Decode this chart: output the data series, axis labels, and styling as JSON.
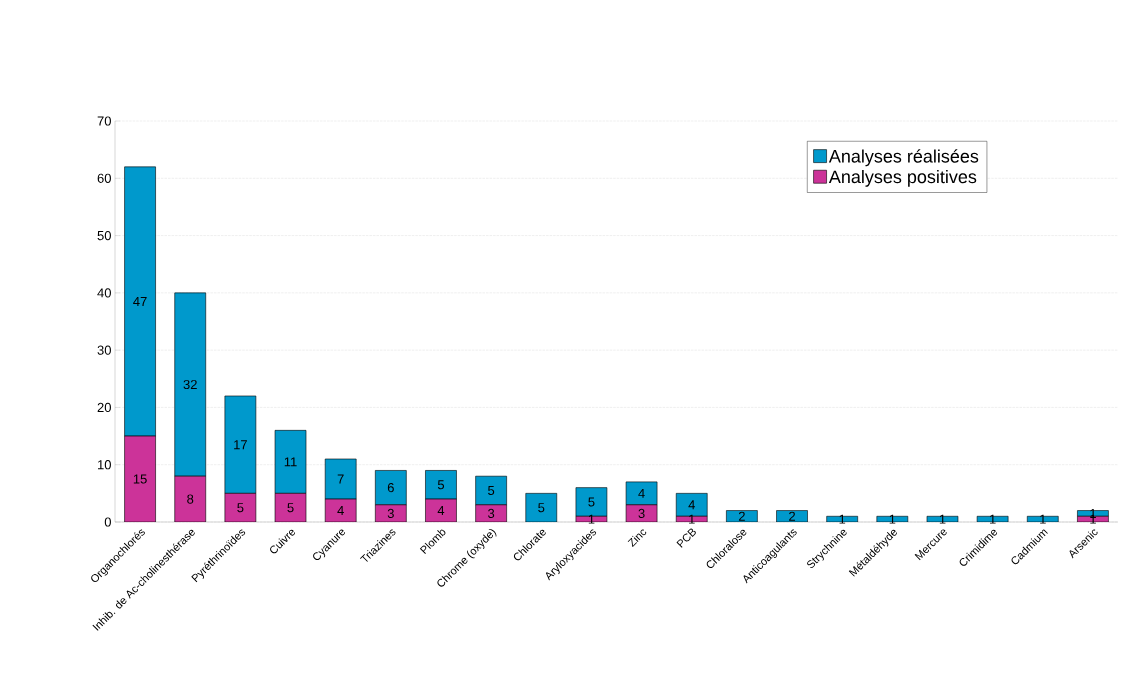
{
  "chart_data": {
    "type": "bar",
    "stacked": true,
    "categories": [
      "Organochlorés",
      "Inhib. de Ac-cholinesthérase",
      "Pyréthrinoïdes",
      "Cuivre",
      "Cyanure",
      "Triazines",
      "Plomb",
      "Chrome (oxyde)",
      "Chlorate",
      "Aryloxyacides",
      "Zinc",
      "PCB",
      "Chloralose",
      "Anticoagulants",
      "Strychnine",
      "Métaldéhyde",
      "Mercure",
      "Crimidime",
      "Cadmium",
      "Arsenic"
    ],
    "series": [
      {
        "name": "Analyses positives",
        "color": "#cc3399",
        "values": [
          15,
          8,
          5,
          5,
          4,
          3,
          4,
          3,
          0,
          1,
          3,
          1,
          0,
          0,
          0,
          0,
          0,
          0,
          0,
          1
        ],
        "value_labels": [
          "15",
          "8",
          "5",
          "5",
          "4",
          "3",
          "4",
          "3",
          null,
          "1",
          "3",
          "1",
          null,
          null,
          null,
          null,
          null,
          null,
          null,
          "1"
        ]
      },
      {
        "name": "Analyses réalisées",
        "color": "#0099cc",
        "values": [
          47,
          32,
          17,
          11,
          7,
          6,
          5,
          5,
          5,
          5,
          4,
          4,
          2,
          2,
          1,
          1,
          1,
          1,
          1,
          1
        ],
        "value_labels": [
          "47",
          "32",
          "17",
          "11",
          "7",
          "6",
          "5",
          "5",
          "5",
          "5",
          "4",
          "4",
          "2",
          "2",
          "1",
          "1",
          "1",
          "1",
          "1",
          "1"
        ]
      }
    ],
    "ylim": [
      0,
      70
    ],
    "yticks": [
      0,
      10,
      20,
      30,
      40,
      50,
      60,
      70
    ],
    "grid": "y",
    "legend": "top right"
  }
}
